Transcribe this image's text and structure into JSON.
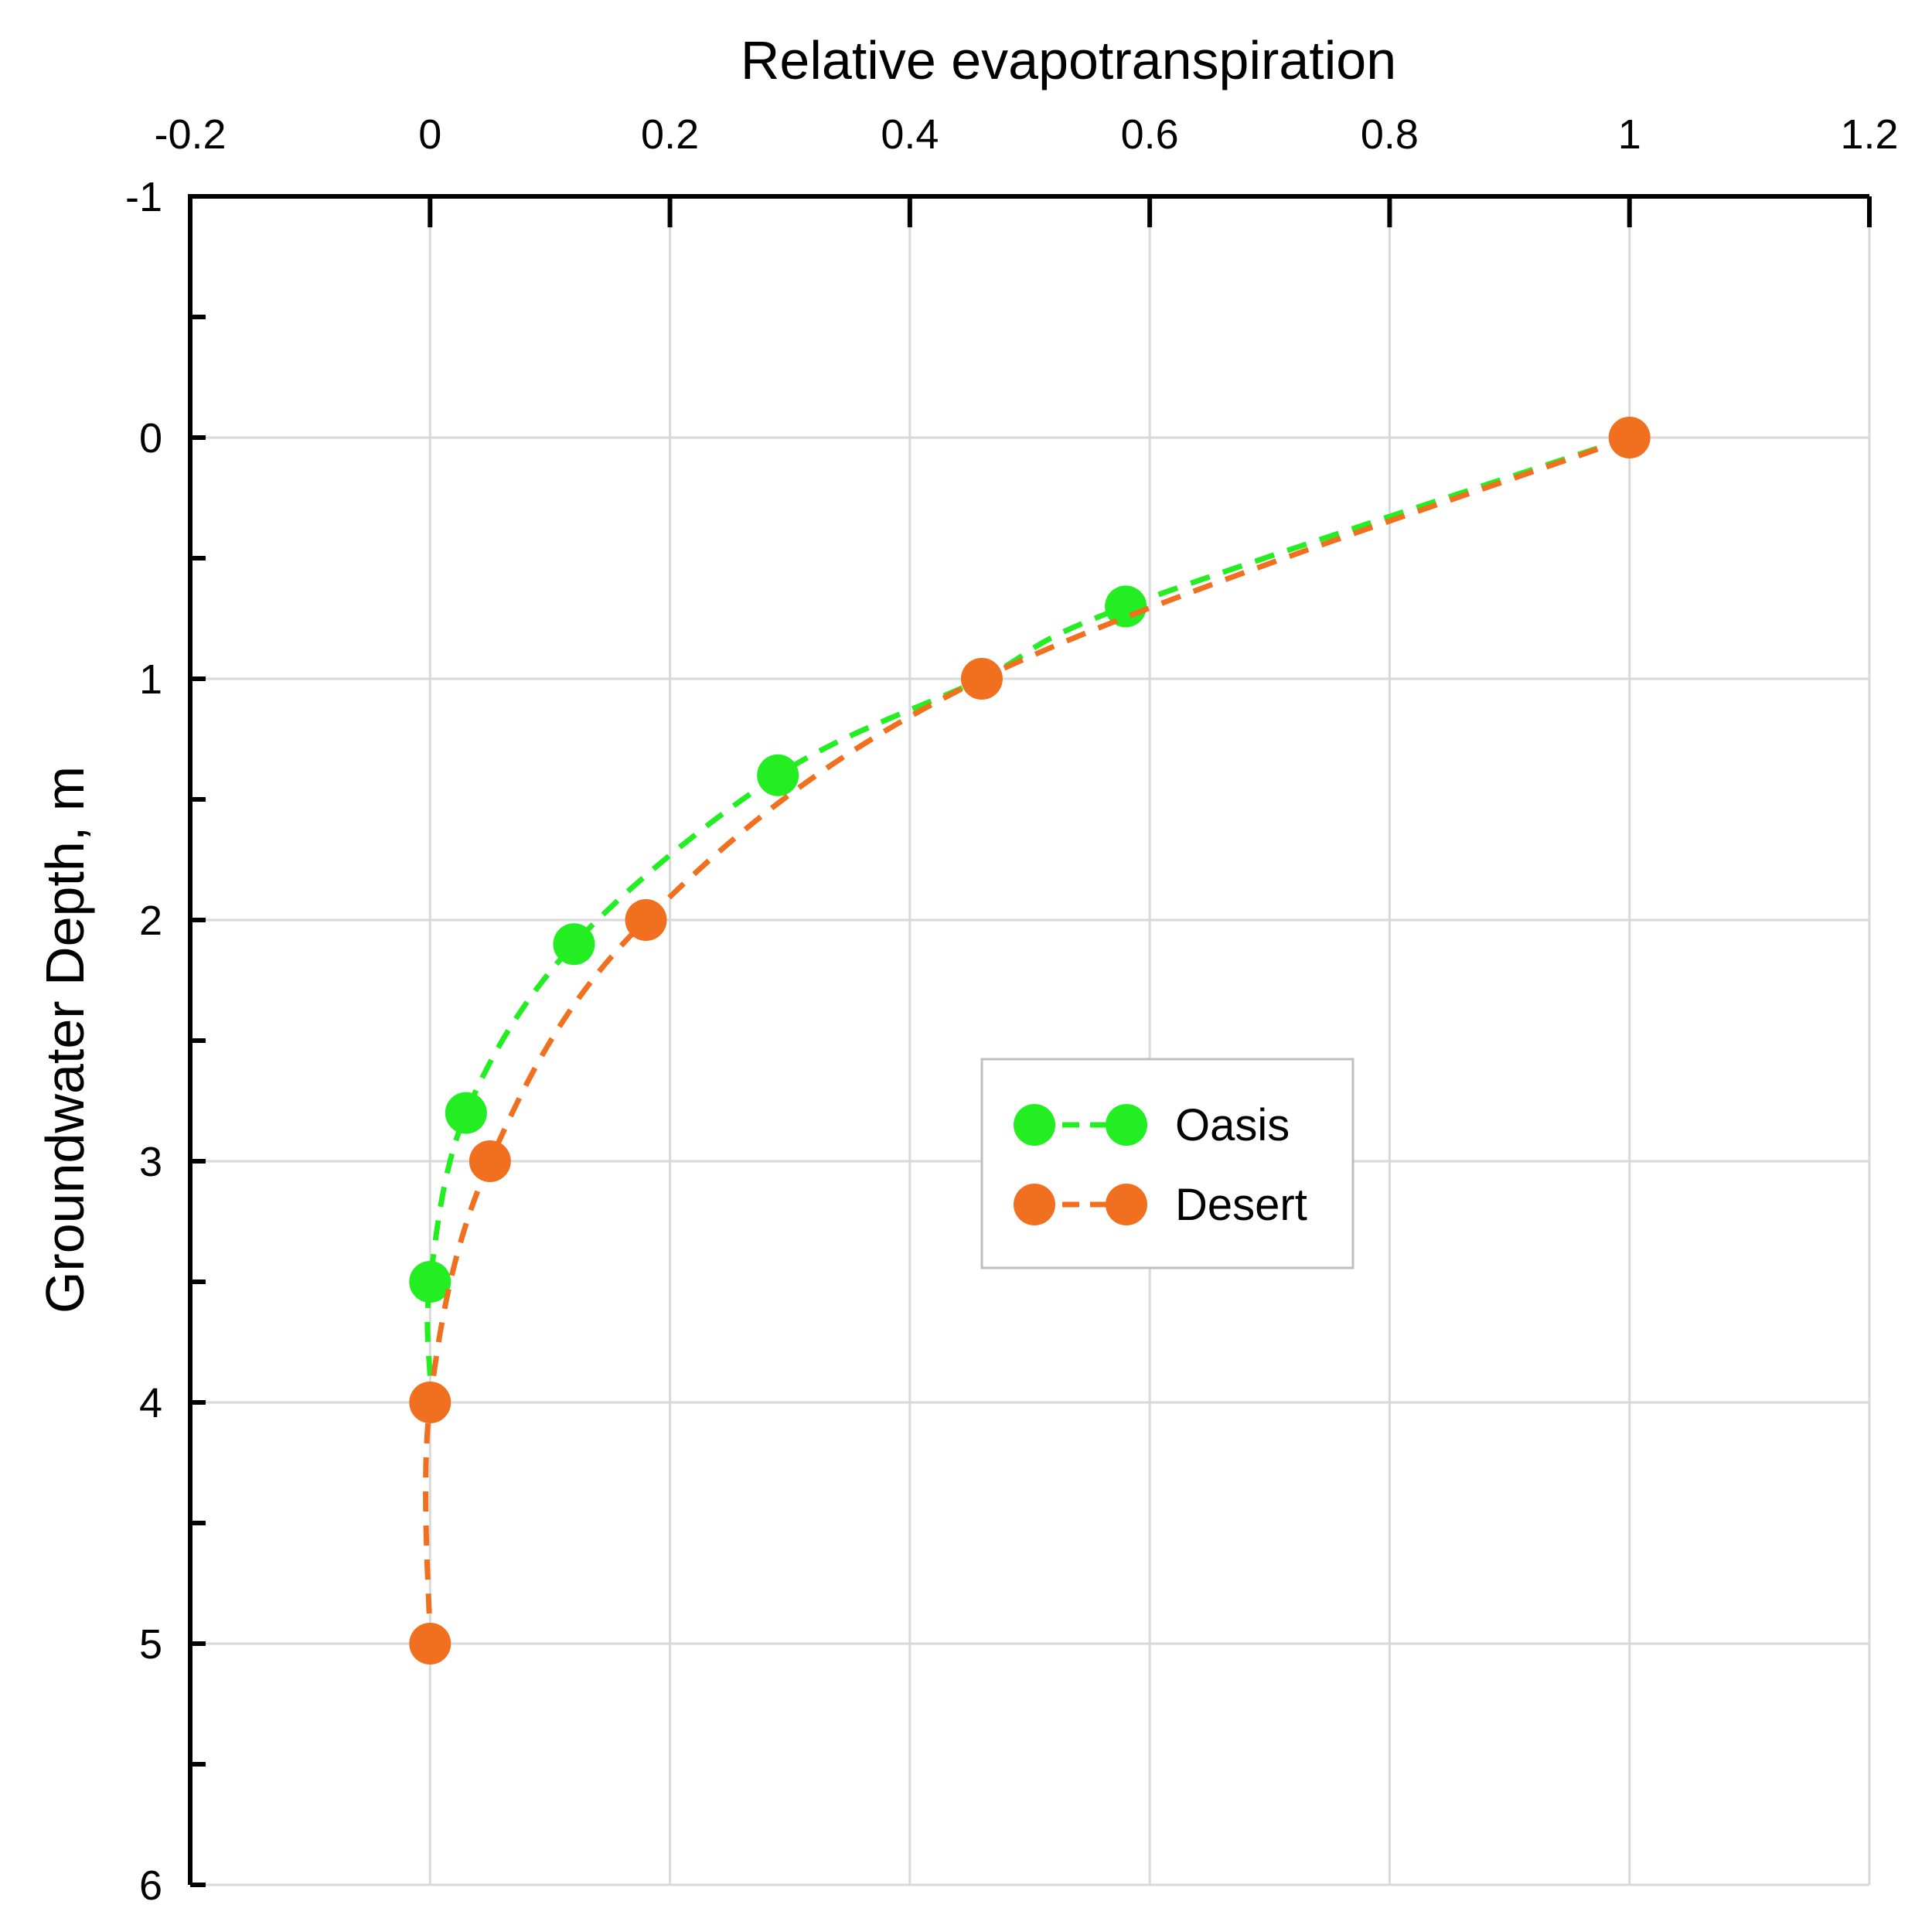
{
  "chart_data": {
    "type": "scatter",
    "title": "",
    "xlabel": "Relative evapotranspiration",
    "ylabel": "Groundwater Depth, m",
    "xlim": [
      -0.2,
      1.2
    ],
    "ylim": [
      -1,
      6
    ],
    "y_inverted": true,
    "x_axis_position": "top",
    "x_ticks": [
      "-0.2",
      "0",
      "0.2",
      "0.4",
      "0.6",
      "0.8",
      "1",
      "1.2"
    ],
    "y_ticks": [
      "-1",
      "0",
      "1",
      "2",
      "3",
      "4",
      "5",
      "6"
    ],
    "grid": true,
    "legend_position": "center-right",
    "series": [
      {
        "name": "Oasis",
        "color": "#22ee22",
        "line_style": "dashed",
        "points": [
          {
            "x": 1.0,
            "y": 0.0
          },
          {
            "x": 0.58,
            "y": 0.7
          },
          {
            "x": 0.46,
            "y": 1.0
          },
          {
            "x": 0.29,
            "y": 1.4
          },
          {
            "x": 0.12,
            "y": 2.1
          },
          {
            "x": 0.03,
            "y": 2.8
          },
          {
            "x": 0.0,
            "y": 3.5
          }
        ],
        "marked_points": [
          1,
          3,
          4,
          5,
          6
        ],
        "curve_extends_to": {
          "x": 0.0,
          "y": 3.9
        }
      },
      {
        "name": "Desert",
        "color": "#f07020",
        "line_style": "dashed",
        "points": [
          {
            "x": 1.0,
            "y": 0.0
          },
          {
            "x": 0.46,
            "y": 1.0
          },
          {
            "x": 0.18,
            "y": 2.0
          },
          {
            "x": 0.05,
            "y": 3.0
          },
          {
            "x": 0.0,
            "y": 4.0
          },
          {
            "x": 0.0,
            "y": 5.0
          }
        ],
        "marked_points": [
          0,
          1,
          2,
          3,
          4,
          5
        ]
      }
    ]
  }
}
